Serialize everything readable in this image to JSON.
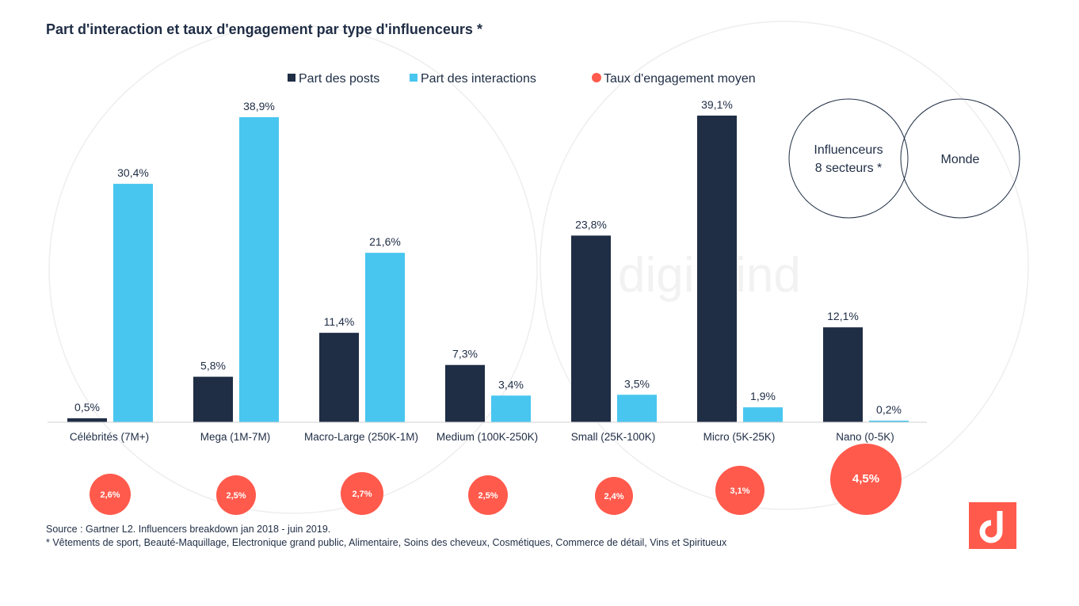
{
  "chart_data": {
    "type": "bar",
    "title": "Part d'interaction et  taux d'engagement par type d'influenceurs *",
    "categories": [
      "Célébrités (7M+)",
      "Mega (1M-7M)",
      "Macro-Large (250K-1M)",
      "Medium (100K-250K)",
      "Small (25K-100K)",
      "Micro (5K-25K)",
      "Nano (0-5K)"
    ],
    "series": [
      {
        "name": "Part des posts",
        "color": "#1f2d45",
        "values": [
          0.5,
          5.8,
          11.4,
          7.3,
          23.8,
          39.1,
          12.1
        ],
        "labels": [
          "0,5%",
          "5,8%",
          "11,4%",
          "7,3%",
          "23,8%",
          "39,1%",
          "12,1%"
        ]
      },
      {
        "name": "Part des interactions",
        "color": "#48c6ef",
        "values": [
          30.4,
          38.9,
          21.6,
          3.4,
          3.5,
          1.9,
          0.2
        ],
        "labels": [
          "30,4%",
          "38,9%",
          "21,6%",
          "3,4%",
          "3,5%",
          "1,9%",
          "0,2%"
        ]
      },
      {
        "name": "Taux d'engagement moyen",
        "color": "#ff5a4c",
        "type": "bubble",
        "values": [
          2.6,
          2.5,
          2.7,
          2.5,
          2.4,
          3.1,
          4.5
        ],
        "labels": [
          "2,6%",
          "2,5%",
          "2,7%",
          "2,5%",
          "2,4%",
          "3,1%",
          "4,5%"
        ]
      }
    ],
    "legend_placement": "top-center",
    "grid": false,
    "ylim": [
      0,
      40
    ]
  },
  "venn": {
    "left": "Influenceurs",
    "left2": "8 secteurs *",
    "right": "Monde"
  },
  "watermark": "digimind",
  "footer": {
    "source": "Source : Gartner L2. Influencers breakdown  jan 2018 - juin 2019.",
    "note": "* Vêtements de sport, Beauté-Maquillage, Electronique grand public, Alimentaire, Soins des cheveux, Cosmétiques, Commerce de détail, Vins et Spiritueux"
  },
  "logo": {
    "color": "#ff5a4c"
  }
}
